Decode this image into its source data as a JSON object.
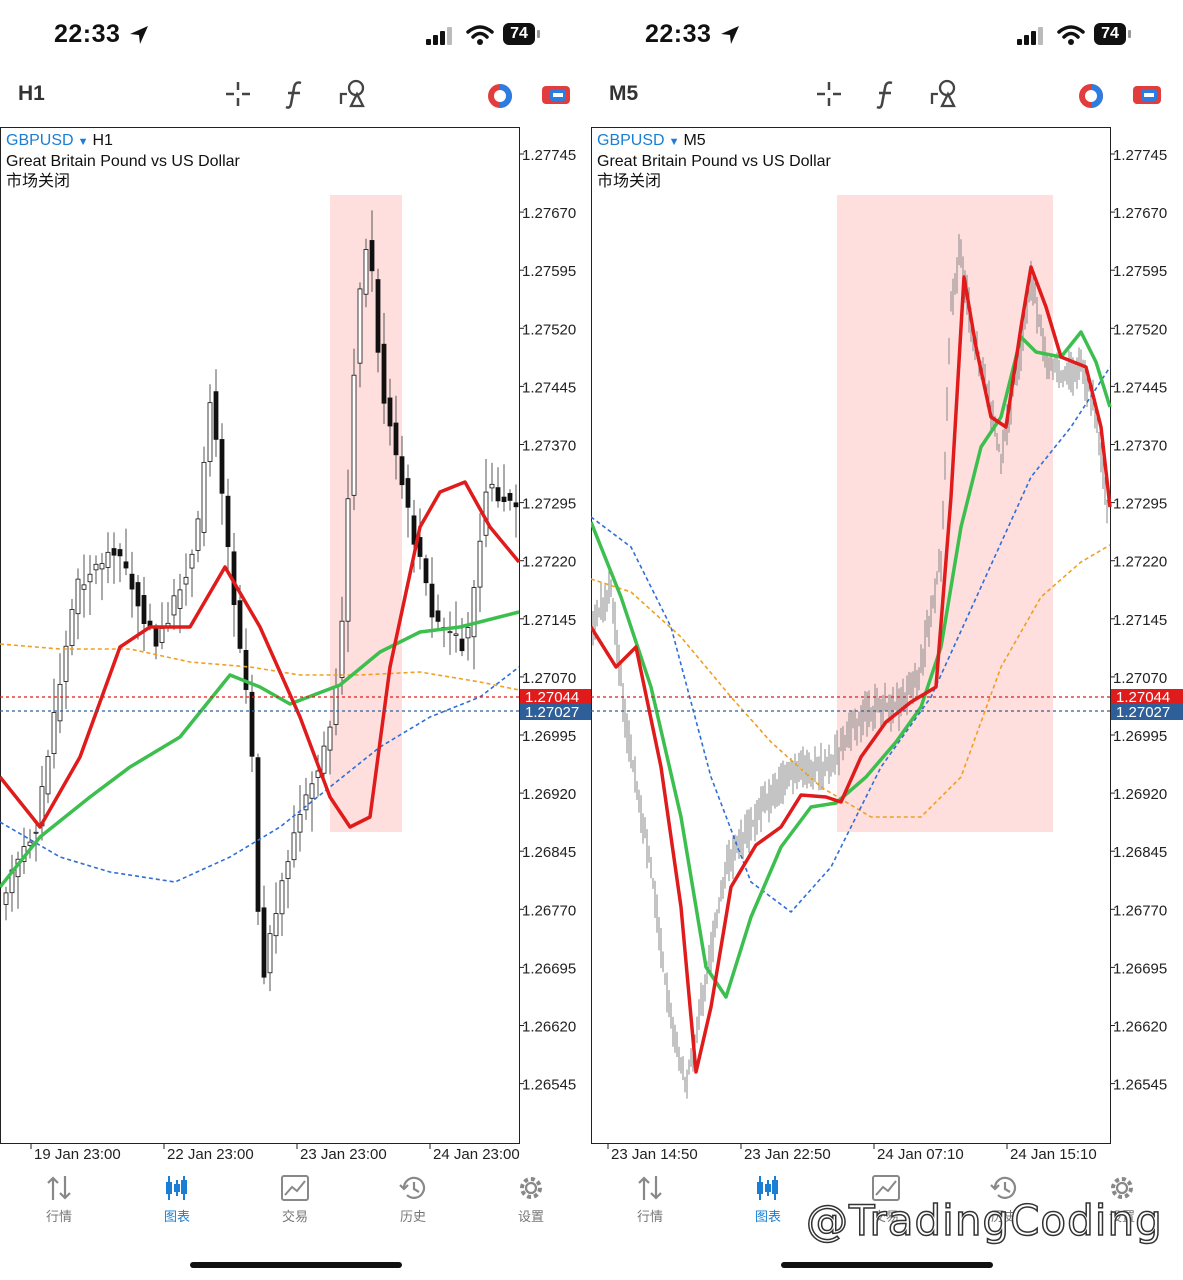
{
  "left": {
    "status": {
      "time": "22:33",
      "battery": "74"
    },
    "timeframe": "H1",
    "symbol": "GBPUSD",
    "symbol_tf": "H1",
    "description": "Great Britain Pound vs US Dollar",
    "market_state": "市场关闭",
    "price_ticks": [
      "1.27745",
      "1.27670",
      "1.27595",
      "1.27520",
      "1.27445",
      "1.27370",
      "1.27295",
      "1.27220",
      "1.27145",
      "1.27070",
      "1.26995",
      "1.26920",
      "1.26845",
      "1.26770",
      "1.26695",
      "1.26620",
      "1.26545"
    ],
    "bid_label": "1.27044",
    "ask_label": "1.27027",
    "time_ticks": [
      "19 Jan 23:00",
      "22 Jan 23:00",
      "23 Jan 23:00",
      "24 Jan 23:00"
    ]
  },
  "right": {
    "status": {
      "time": "22:33",
      "battery": "74"
    },
    "timeframe": "M5",
    "symbol": "GBPUSD",
    "symbol_tf": "M5",
    "description": "Great Britain Pound vs US Dollar",
    "market_state": "市场关闭",
    "price_ticks": [
      "1.27745",
      "1.27670",
      "1.27595",
      "1.27520",
      "1.27445",
      "1.27370",
      "1.27295",
      "1.27220",
      "1.27145",
      "1.27070",
      "1.26995",
      "1.26920",
      "1.26845",
      "1.26770",
      "1.26695",
      "1.26620",
      "1.26545"
    ],
    "bid_label": "1.27044",
    "ask_label": "1.27027",
    "time_ticks": [
      "23 Jan 14:50",
      "23 Jan 22:50",
      "24 Jan 07:10",
      "24 Jan 15:10"
    ]
  },
  "tabs": [
    {
      "label": "行情",
      "icon": "quotes-arrows-icon"
    },
    {
      "label": "图表",
      "icon": "candlestick-chart-icon",
      "active": true
    },
    {
      "label": "交易",
      "icon": "trade-line-chart-icon"
    },
    {
      "label": "历史",
      "icon": "history-clock-icon"
    },
    {
      "label": "设置",
      "icon": "settings-gear-icon"
    }
  ],
  "watermark": "@TradingCoding",
  "colors": {
    "accent": "#1a7fd4",
    "ma_fast": "#e01b1b",
    "ma_mid": "#3cbf4f",
    "ma_blue": "#2f6fd6",
    "ma_orange": "#f0a020",
    "highlight": "#ffdede",
    "bid": "#e01b1b",
    "ask": "#2e5f99"
  }
}
